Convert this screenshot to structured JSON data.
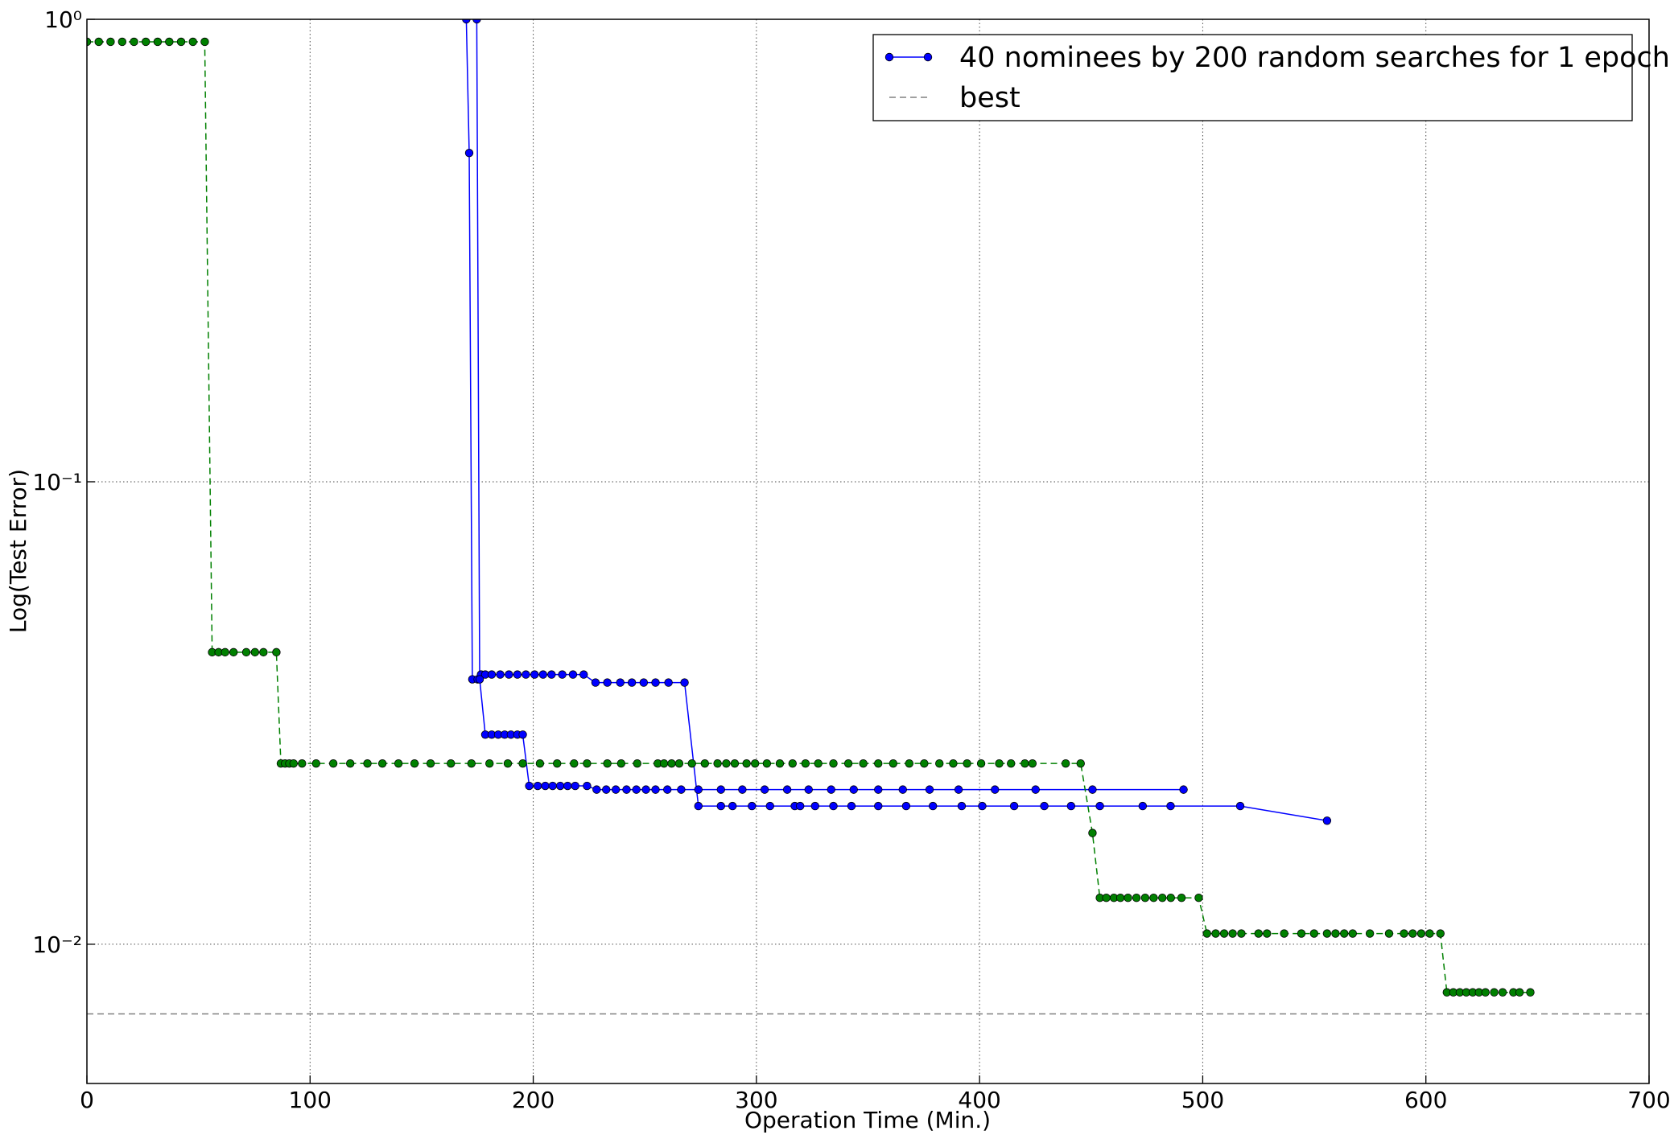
{
  "chart_data": {
    "type": "line",
    "xlabel": "Operation Time (Min.)",
    "ylabel": "Log(Test Error)",
    "xlim": [
      0,
      700
    ],
    "xticks": [
      0,
      100,
      200,
      300,
      400,
      500,
      600,
      700
    ],
    "ylim": [
      0.005,
      1
    ],
    "log_y": true,
    "yticks": [
      {
        "value": 1,
        "label": "10⁰"
      },
      {
        "value": 0.1,
        "label": "10⁻¹"
      },
      {
        "value": 0.01,
        "label": "10⁻²"
      }
    ],
    "grid": true,
    "legend": "upper right",
    "series": [
      {
        "name": "40 nominees by 200 random searches for 1 epoch",
        "color": "#0000ff",
        "linestyle": "solid",
        "marker": true,
        "x": [
          170,
          171.3,
          172.7,
          175.1,
          176.6,
          178.5,
          181.4,
          185.2,
          189.1,
          192.9,
          196.7,
          200.6,
          204.4,
          208.2,
          213.0,
          217.8,
          222.6,
          227.9,
          233.2,
          239.0,
          244.2,
          249.5,
          254.8,
          260.6,
          267.8,
          274.0,
          284.1,
          289.3,
          298.0,
          306.1,
          317.2,
          319.6,
          326.3,
          334.5,
          342.6,
          354.6,
          367.1,
          379.1,
          392.0,
          401.2,
          415.5,
          429.0,
          441.0,
          453.9,
          473.1,
          485.6,
          516.8,
          555.7,
          null,
          174.7,
          176.0,
          178.5,
          181.4,
          184.3,
          187.2,
          190.0,
          192.9,
          195.3,
          198.2,
          202.0,
          205.4,
          208.7,
          212.1,
          215.4,
          218.8,
          224.1,
          228.4,
          232.7,
          237.0,
          241.8,
          246.2,
          250.5,
          254.8,
          260.1,
          266.3,
          274.0,
          284.1,
          293.7,
          303.7,
          313.8,
          323.4,
          333.5,
          343.6,
          354.6,
          365.6,
          377.6,
          390.6,
          406.9,
          425.1,
          450.6,
          491.4
        ],
        "values": [
          1,
          0.514,
          0.0374,
          0.0374,
          0.0383,
          0.0383,
          0.0383,
          0.0383,
          0.0383,
          0.0383,
          0.0383,
          0.0383,
          0.0383,
          0.0383,
          0.0383,
          0.0383,
          0.0383,
          0.0368,
          0.0368,
          0.0368,
          0.0368,
          0.0368,
          0.0368,
          0.0368,
          0.0368,
          0.0199,
          0.0199,
          0.0199,
          0.0199,
          0.0199,
          0.0199,
          0.0199,
          0.0199,
          0.0199,
          0.0199,
          0.0199,
          0.0199,
          0.0199,
          0.0199,
          0.0199,
          0.0199,
          0.0199,
          0.0199,
          0.0199,
          0.0199,
          0.0199,
          0.0199,
          0.0185,
          null,
          1,
          0.0374,
          0.0284,
          0.0284,
          0.0284,
          0.0284,
          0.0284,
          0.0284,
          0.0284,
          0.022,
          0.022,
          0.022,
          0.022,
          0.022,
          0.022,
          0.022,
          0.022,
          0.0216,
          0.0216,
          0.0216,
          0.0216,
          0.0216,
          0.0216,
          0.0216,
          0.0216,
          0.0216,
          0.0216,
          0.0216,
          0.0216,
          0.0216,
          0.0216,
          0.0216,
          0.0216,
          0.0216,
          0.0216,
          0.0216,
          0.0216,
          0.0216,
          0.0216,
          0.0216,
          0.0216,
          0.0216
        ]
      },
      {
        "color": "#008000",
        "linestyle": "dashed",
        "marker": true,
        "x": [
          0,
          5.3,
          10.6,
          15.8,
          21.1,
          26.4,
          31.7,
          36.9,
          42.2,
          47.5,
          52.8,
          56.1,
          59.0,
          61.9,
          65.7,
          71.4,
          75.3,
          79.1,
          84.9,
          86.9,
          88.8,
          90.7,
          92.6,
          96.4,
          102.7,
          110.4,
          118.0,
          125.7,
          132.4,
          139.6,
          146.8,
          154.0,
          163.1,
          172.3,
          180.4,
          188.6,
          195.3,
          203.0,
          210.7,
          218.3,
          224.1,
          233.2,
          239.4,
          246.6,
          255.8,
          258.6,
          262.0,
          265.4,
          271.1,
          276.9,
          282.6,
          286.5,
          290.3,
          295.6,
          299.4,
          304.7,
          310.5,
          316.2,
          322.0,
          327.7,
          334.5,
          341.2,
          347.9,
          354.6,
          361.3,
          368.5,
          375.2,
          382.0,
          388.2,
          394.4,
          400.7,
          408.8,
          414.1,
          420.3,
          423.7,
          438.6,
          445.3,
          450.6,
          453.9,
          456.8,
          460.2,
          463.1,
          466.5,
          470.3,
          474.2,
          478.0,
          481.9,
          485.7,
          490.5,
          498.2,
          501.9,
          505.8,
          509.6,
          513.4,
          517.3,
          525.0,
          528.8,
          536.5,
          544.2,
          549.9,
          555.7,
          559.5,
          563.4,
          567.2,
          574.9,
          583.5,
          590.2,
          594.1,
          597.9,
          601.7,
          606.5,
          609.4,
          612.3,
          615.2,
          618.1,
          621.0,
          623.8,
          626.7,
          630.6,
          634.4,
          639.2,
          642.0,
          646.8
        ],
        "values": [
          0.894,
          0.894,
          0.894,
          0.894,
          0.894,
          0.894,
          0.894,
          0.894,
          0.894,
          0.894,
          0.894,
          0.0428,
          0.0428,
          0.0428,
          0.0428,
          0.0428,
          0.0428,
          0.0428,
          0.0428,
          0.0246,
          0.0246,
          0.0246,
          0.0246,
          0.0246,
          0.0246,
          0.0246,
          0.0246,
          0.0246,
          0.0246,
          0.0246,
          0.0246,
          0.0246,
          0.0246,
          0.0246,
          0.0246,
          0.0246,
          0.0246,
          0.0246,
          0.0246,
          0.0246,
          0.0246,
          0.0246,
          0.0246,
          0.0246,
          0.0246,
          0.0246,
          0.0246,
          0.0246,
          0.0246,
          0.0246,
          0.0246,
          0.0246,
          0.0246,
          0.0246,
          0.0246,
          0.0246,
          0.0246,
          0.0246,
          0.0246,
          0.0246,
          0.0246,
          0.0246,
          0.0246,
          0.0246,
          0.0246,
          0.0246,
          0.0246,
          0.0246,
          0.0246,
          0.0246,
          0.0246,
          0.0246,
          0.0246,
          0.0246,
          0.0246,
          0.0246,
          0.0246,
          0.0174,
          0.0126,
          0.0126,
          0.0126,
          0.0126,
          0.0126,
          0.0126,
          0.0126,
          0.0126,
          0.0126,
          0.0126,
          0.0126,
          0.0126,
          0.01055,
          0.01055,
          0.01055,
          0.01055,
          0.01055,
          0.01055,
          0.01055,
          0.01055,
          0.01055,
          0.01055,
          0.01055,
          0.01055,
          0.01055,
          0.01055,
          0.01055,
          0.01055,
          0.01055,
          0.01055,
          0.01055,
          0.01055,
          0.01055,
          0.00787,
          0.00787,
          0.00787,
          0.00787,
          0.00787,
          0.00787,
          0.00787,
          0.00787,
          0.00787,
          0.00787,
          0.00787,
          0.00787
        ]
      },
      {
        "name": "best",
        "color": "#808080",
        "linestyle": "dashed",
        "marker": false,
        "y": 0.00707
      }
    ]
  }
}
